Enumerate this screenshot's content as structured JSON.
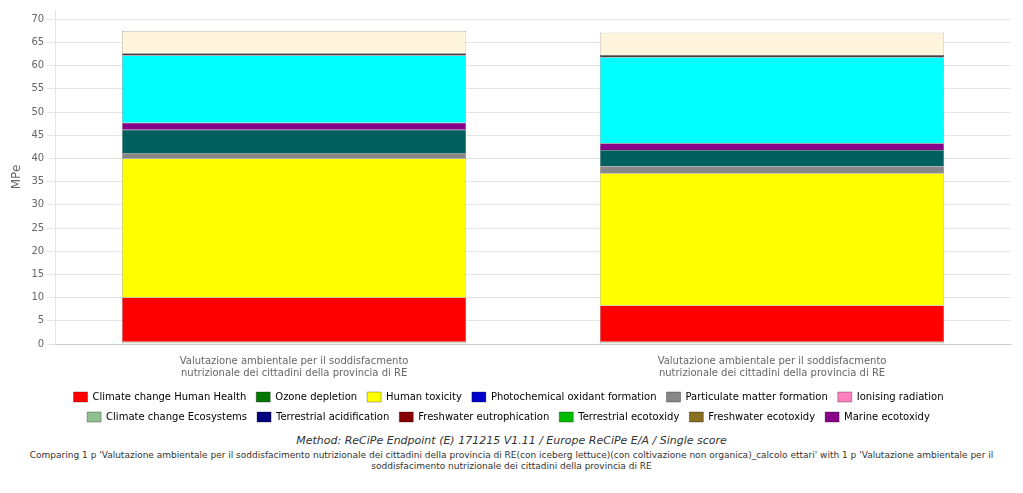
{
  "chart_data": {
    "type": "bar",
    "stacked": true,
    "categories": [
      "Valutazione ambientale per il soddisfacmento\nnutrizionale dei cittadini della provincia di RE",
      "Valutazione ambientale per il soddisfacmento\nnutrizionale dei cittadini della provincia di RE"
    ],
    "series": [
      {
        "name": "Climate change Ecosystems",
        "color": "#C8D8C0",
        "values": [
          0.5,
          0.5
        ]
      },
      {
        "name": "Climate change Human Health",
        "color": "#FF0000",
        "values": [
          9.5,
          7.8
        ]
      },
      {
        "name": "Human toxicity",
        "color": "#FFFF00",
        "values": [
          30.0,
          28.5
        ]
      },
      {
        "name": "Particulate matter formation",
        "color": "#888888",
        "values": [
          1.2,
          1.5
        ]
      },
      {
        "name": "Terrestrial ecotoxidy",
        "color": "#006060",
        "values": [
          5.0,
          3.5
        ]
      },
      {
        "name": "Marine ecotoxidy",
        "color": "#880088",
        "values": [
          1.5,
          1.5
        ]
      },
      {
        "name": "Freshwater ecotoxidy",
        "color": "#00FFFF",
        "values": [
          14.5,
          18.5
        ]
      },
      {
        "name": "Ionising radiation",
        "color": "#404040",
        "values": [
          0.5,
          0.5
        ]
      },
      {
        "name": "Freshwater eutrophication",
        "color": "#FFF5DC",
        "values": [
          4.8,
          4.8
        ]
      }
    ],
    "legend_entries": [
      {
        "name": "Climate change Human Health",
        "color": "#FF0000"
      },
      {
        "name": "Ozone depletion",
        "color": "#007700"
      },
      {
        "name": "Human toxicity",
        "color": "#FFFF00"
      },
      {
        "name": "Photochemical oxidant formation",
        "color": "#0000CC"
      },
      {
        "name": "Particulate matter formation",
        "color": "#888888"
      },
      {
        "name": "Ionising radiation",
        "color": "#FF80C0"
      },
      {
        "name": "Climate change Ecosystems",
        "color": "#90C090"
      },
      {
        "name": "Terrestrial acidification",
        "color": "#000080"
      },
      {
        "name": "Freshwater eutrophication",
        "color": "#880000"
      },
      {
        "name": "Terrestrial ecotoxidy",
        "color": "#00BB00"
      },
      {
        "name": "Freshwater ecotoxidy",
        "color": "#887020"
      },
      {
        "name": "Marine ecotoxidy",
        "color": "#880088"
      }
    ],
    "legend": "bottom",
    "ylabel": "MPe",
    "ylim": [
      0,
      72
    ],
    "yticks": [
      0,
      5,
      10,
      15,
      20,
      25,
      30,
      35,
      40,
      45,
      50,
      55,
      60,
      65,
      70
    ],
    "grid": true,
    "notes": [
      "Method: ReCiPe Endpoint (E) 171215 V1.11 / Europe ReCiPe E/A / Single score",
      "Comparing 1 p 'Valutazione ambientale per il soddisfacimento nutrizionale dei cittadini della provincia di RE(con iceberg lettuce)(con coltivazione non organica)_calcolo ettari' with 1 p 'Valutazione ambientale per il soddisfacimento nutrizionale dei cittadini della provincia di RE"
    ]
  }
}
